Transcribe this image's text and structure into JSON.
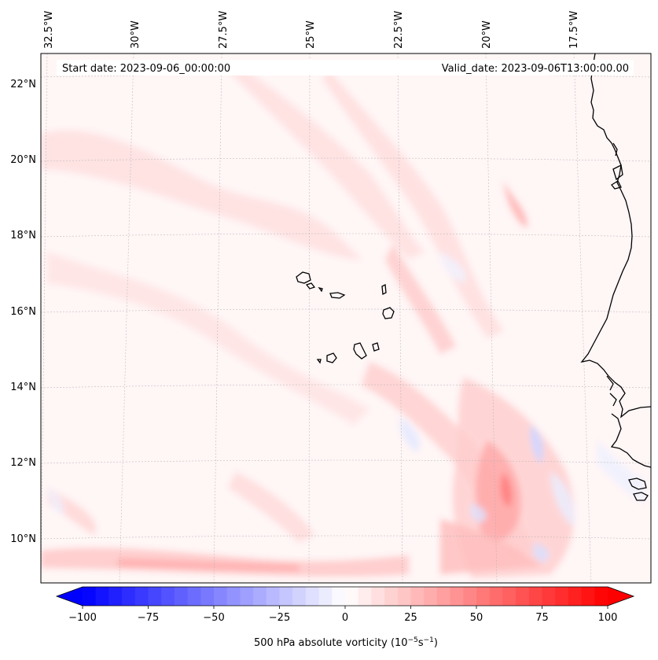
{
  "header": {
    "start_date": "Start date: 2023-09-06_00:00:00",
    "valid_date": "Valid_date: 2023-09-06T13:00:00.00"
  },
  "lon_labels": [
    "32.5°W",
    "30°W",
    "27.5°W",
    "25°W",
    "22.5°W",
    "20°W",
    "17.5°W"
  ],
  "lat_labels": [
    "22°N",
    "20°N",
    "18°N",
    "16°N",
    "14°N",
    "12°N",
    "10°N"
  ],
  "colorbar": {
    "ticks": [
      "−100",
      "−75",
      "−50",
      "−25",
      "0",
      "25",
      "50",
      "75",
      "100"
    ],
    "label": "500 hPa absolute vorticity (10",
    "label_exp1": "−5",
    "label_mid": "s",
    "label_exp2": "−1",
    "label_end": ")",
    "min": -100,
    "max": 100,
    "step": 5,
    "cmap": "bwr"
  },
  "colors": {
    "neg": "#0000ff",
    "pos": "#ff0000",
    "coast": "#000000"
  }
}
